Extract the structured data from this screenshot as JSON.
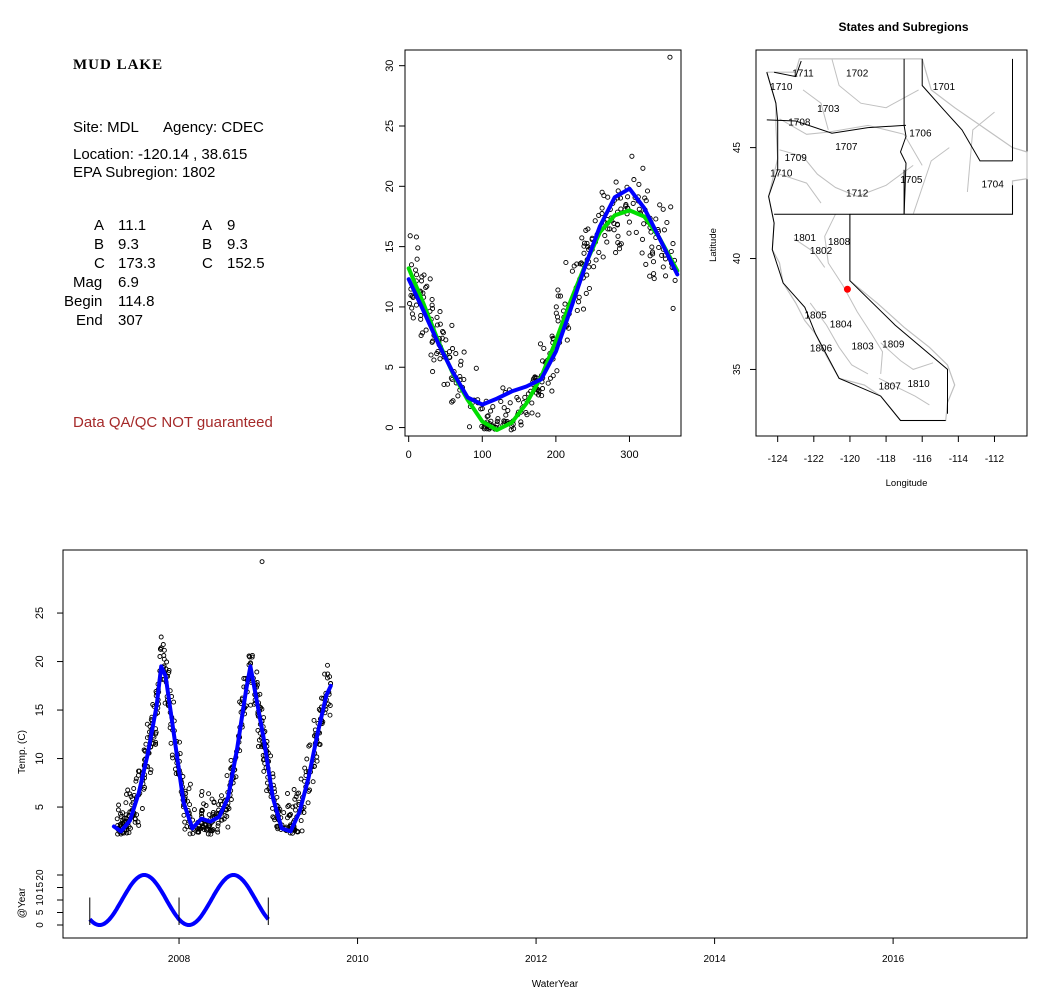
{
  "site_info": {
    "title": "MUD LAKE",
    "site": "Site: MDL",
    "agency": "Agency: CDEC",
    "location": "Location: -120.14 , 38.615",
    "subregion": "EPA Subregion: 1802",
    "params_left": [
      {
        "label": "A",
        "value": "11.1"
      },
      {
        "label": "B",
        "value": "9.3"
      },
      {
        "label": "C",
        "value": "173.3"
      },
      {
        "label": "Mag",
        "value": "6.9"
      },
      {
        "label": "Begin",
        "value": "114.8"
      },
      {
        "label": "End",
        "value": "307"
      }
    ],
    "params_right": [
      {
        "label": "A",
        "value": "9"
      },
      {
        "label": "B",
        "value": "9.3"
      },
      {
        "label": "C",
        "value": "152.5"
      }
    ],
    "qa_note": "Data QA/QC NOT guaranteed"
  },
  "colors": {
    "points": "#000000",
    "fit_blue": "#0000ff",
    "fit_green": "#00dd00",
    "site_marker": "#ff0000",
    "qa_text": "#a52a2a",
    "map_boundary": "#c0c0c0"
  },
  "chart_data": [
    {
      "type": "scatter",
      "id": "doy",
      "title": "",
      "xlabel": "",
      "ylabel": "",
      "xlim": [
        -5,
        370
      ],
      "ylim": [
        -0.7,
        31.3
      ],
      "xticks": [
        0,
        100,
        200,
        300
      ],
      "yticks": [
        0,
        5,
        10,
        15,
        20,
        25,
        30
      ],
      "series": [
        {
          "kind": "points",
          "color": "#000000",
          "point_count": 360,
          "outlier": [
            [
              355,
              30.7
            ]
          ]
        },
        {
          "kind": "smooth",
          "color": "#00dd00",
          "x": [
            0,
            20,
            40,
            60,
            80,
            100,
            120,
            140,
            160,
            180,
            200,
            220,
            240,
            260,
            280,
            300,
            320,
            340,
            365
          ],
          "y": [
            13.2,
            10.3,
            7.2,
            4.5,
            2.3,
            0.5,
            -0.2,
            0.4,
            2.0,
            4.2,
            7.2,
            10.5,
            13.5,
            16.2,
            17.6,
            18.0,
            17.5,
            15.8,
            13.0
          ]
        },
        {
          "kind": "smooth",
          "color": "#0000ff",
          "x": [
            0,
            20,
            40,
            60,
            80,
            100,
            120,
            140,
            160,
            180,
            200,
            220,
            240,
            260,
            280,
            300,
            320,
            340,
            365
          ],
          "y": [
            12.3,
            9.7,
            7.0,
            4.6,
            2.5,
            1.9,
            2.4,
            3.0,
            3.4,
            4.0,
            6.3,
            9.8,
            13.4,
            16.7,
            19.1,
            19.8,
            18.2,
            15.8,
            12.7
          ]
        }
      ]
    },
    {
      "type": "map",
      "id": "map",
      "title": "States and Subregions",
      "xlabel": "Longitude",
      "ylabel": "Latitude",
      "xlim": [
        -125.2,
        -110.2
      ],
      "ylim": [
        32.0,
        49.4
      ],
      "xticks": [
        -124,
        -122,
        -120,
        -118,
        -116,
        -114,
        -112
      ],
      "yticks": [
        35,
        40,
        45
      ],
      "site": {
        "lon": -120.14,
        "lat": 38.615
      },
      "regions": [
        {
          "label": "1702",
          "lon": -119.6,
          "lat": 48.2
        },
        {
          "label": "1701",
          "lon": -114.8,
          "lat": 47.6
        },
        {
          "label": "1711",
          "lon": -122.6,
          "lat": 48.2
        },
        {
          "label": "1710",
          "lon": -123.8,
          "lat": 47.6
        },
        {
          "label": "1703",
          "lon": -121.2,
          "lat": 46.6
        },
        {
          "label": "1708",
          "lon": -122.8,
          "lat": 46.0
        },
        {
          "label": "1706",
          "lon": -116.1,
          "lat": 45.5
        },
        {
          "label": "1707",
          "lon": -120.2,
          "lat": 44.9
        },
        {
          "label": "1709",
          "lon": -123.0,
          "lat": 44.4
        },
        {
          "label": "1710",
          "lon": -123.8,
          "lat": 43.7
        },
        {
          "label": "1705",
          "lon": -116.6,
          "lat": 43.4
        },
        {
          "label": "1704",
          "lon": -112.1,
          "lat": 43.2
        },
        {
          "label": "1712",
          "lon": -119.6,
          "lat": 42.8
        },
        {
          "label": "1801",
          "lon": -122.5,
          "lat": 40.8
        },
        {
          "label": "1808",
          "lon": -120.6,
          "lat": 40.6
        },
        {
          "label": "1802",
          "lon": -121.6,
          "lat": 40.2
        },
        {
          "label": "1805",
          "lon": -121.9,
          "lat": 37.3
        },
        {
          "label": "1804",
          "lon": -120.5,
          "lat": 36.9
        },
        {
          "label": "1806",
          "lon": -121.6,
          "lat": 35.8
        },
        {
          "label": "1803",
          "lon": -119.3,
          "lat": 35.9
        },
        {
          "label": "1809",
          "lon": -117.6,
          "lat": 36.0
        },
        {
          "label": "1807",
          "lon": -117.8,
          "lat": 34.1
        },
        {
          "label": "1810",
          "lon": -116.2,
          "lat": 34.2
        }
      ]
    },
    {
      "type": "scatter",
      "id": "timeseries",
      "title": "",
      "xlabel": "WaterYear",
      "ylabel": "Temp. (C)",
      "sub_ylabel": "@Year",
      "xlim": [
        2006.7,
        2017.5
      ],
      "ylim": [
        -8.5,
        31.5
      ],
      "xticks": [
        2008,
        2010,
        2012,
        2014,
        2016
      ],
      "yticks": [
        5,
        10,
        15,
        20,
        25
      ],
      "sub_yticks": [
        "0",
        "5",
        "10",
        "15",
        "20"
      ],
      "series": [
        {
          "kind": "points",
          "color": "#000000",
          "x_range": [
            2007.3,
            2009.7
          ],
          "outlier": [
            [
              2008.93,
              30.3
            ]
          ]
        },
        {
          "kind": "smooth",
          "color": "#0000ff",
          "x": [
            2007.27,
            2007.35,
            2007.45,
            2007.55,
            2007.65,
            2007.75,
            2007.8,
            2007.85,
            2007.95,
            2008.05,
            2008.15,
            2008.25,
            2008.35,
            2008.45,
            2008.55,
            2008.65,
            2008.75,
            2008.8,
            2008.85,
            2008.95,
            2009.05,
            2009.15,
            2009.25,
            2009.35,
            2009.45,
            2009.55,
            2009.65,
            2009.7
          ],
          "y": [
            3.0,
            2.5,
            3.6,
            6.5,
            10.5,
            15.5,
            19.5,
            18.5,
            12.0,
            5.5,
            2.8,
            3.8,
            3.5,
            4.0,
            6.0,
            11.0,
            17.0,
            19.5,
            17.0,
            12.0,
            6.0,
            2.8,
            2.5,
            4.5,
            8.0,
            12.5,
            16.5,
            17.5
          ]
        },
        {
          "kind": "seasonal",
          "color": "#0000ff",
          "x_range": [
            2007.0,
            2009.0
          ],
          "amplitude_range": [
            0,
            20
          ]
        }
      ]
    }
  ]
}
